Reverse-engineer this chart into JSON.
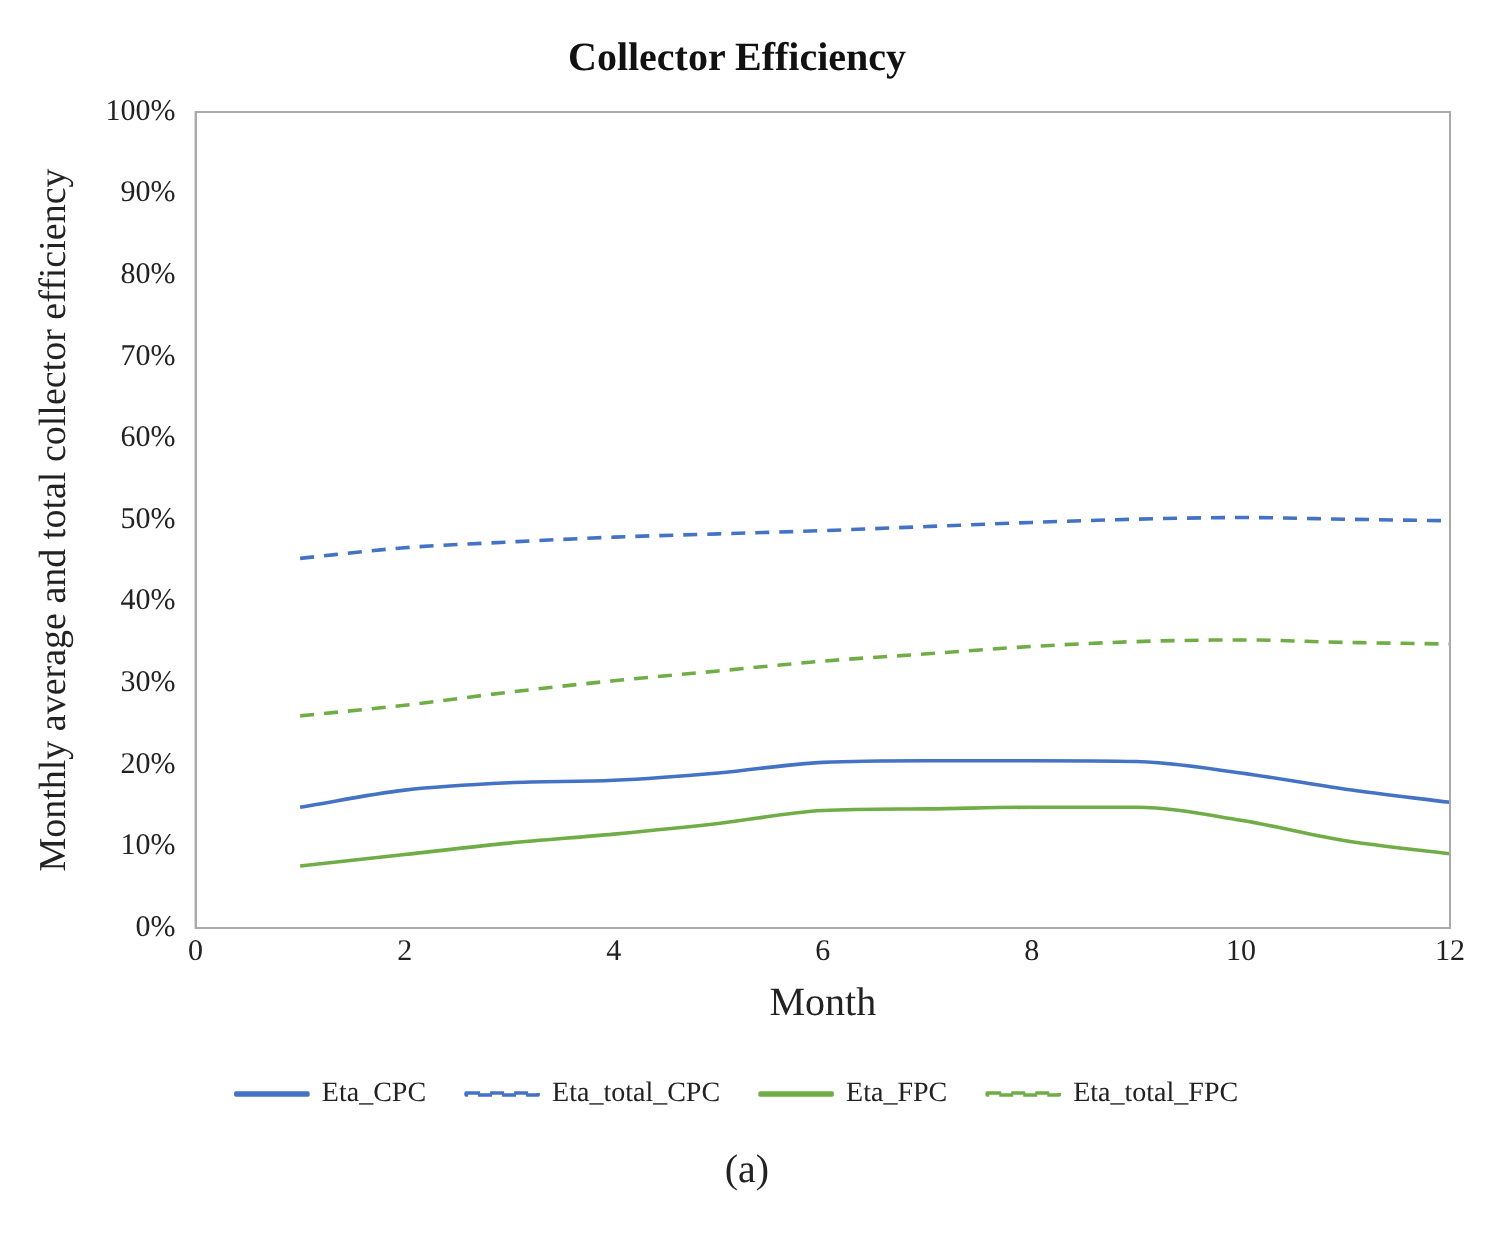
{
  "chart_data": {
    "type": "line",
    "title": "Collector Efficiency",
    "xlabel": "Month",
    "ylabel": "Monthly average and total collector efficiency",
    "annotations": [
      "(a)"
    ],
    "x": [
      1,
      2,
      3,
      4,
      5,
      6,
      7,
      8,
      9,
      10,
      11,
      12
    ],
    "series": [
      {
        "name": "Eta_CPC",
        "color": "#4472c4",
        "line_style": "solid",
        "values": [
          14.8,
          16.9,
          17.8,
          18.1,
          19,
          20.3,
          20.5,
          20.5,
          20.4,
          19,
          17,
          15.4
        ]
      },
      {
        "name": "Eta_total_CPC",
        "color": "#4472c4",
        "line_style": "dashed",
        "values": [
          45.3,
          46.6,
          47.3,
          47.9,
          48.3,
          48.7,
          49.2,
          49.7,
          50.1,
          50.3,
          50.1,
          49.9
        ]
      },
      {
        "name": "Eta_FPC",
        "color": "#70ad47",
        "line_style": "solid",
        "values": [
          7.6,
          9.0,
          10.4,
          11.5,
          12.8,
          14.4,
          14.6,
          14.8,
          14.8,
          13.2,
          10.7,
          9.1
        ]
      },
      {
        "name": "Eta_total_FPC",
        "color": "#70ad47",
        "line_style": "dashed",
        "values": [
          26,
          27.3,
          28.9,
          30.3,
          31.5,
          32.7,
          33.6,
          34.5,
          35.1,
          35.3,
          35.0,
          34.8
        ]
      }
    ],
    "xlim": [
      0,
      12
    ],
    "xticks": [
      0,
      2,
      4,
      6,
      8,
      10,
      12
    ],
    "ylim": [
      0,
      100
    ],
    "yticks": [
      {
        "value": 0,
        "label": "0%"
      },
      {
        "value": 10,
        "label": "10%"
      },
      {
        "value": 20,
        "label": "20%"
      },
      {
        "value": 30,
        "label": "30%"
      },
      {
        "value": 40,
        "label": "40%"
      },
      {
        "value": 50,
        "label": "50%"
      },
      {
        "value": 60,
        "label": "60%"
      },
      {
        "value": 70,
        "label": "70%"
      },
      {
        "value": 80,
        "label": "80%"
      },
      {
        "value": 90,
        "label": "90%"
      },
      {
        "value": 100,
        "label": "100%"
      }
    ],
    "grid": false,
    "legend": "bottom",
    "marker": "none"
  }
}
